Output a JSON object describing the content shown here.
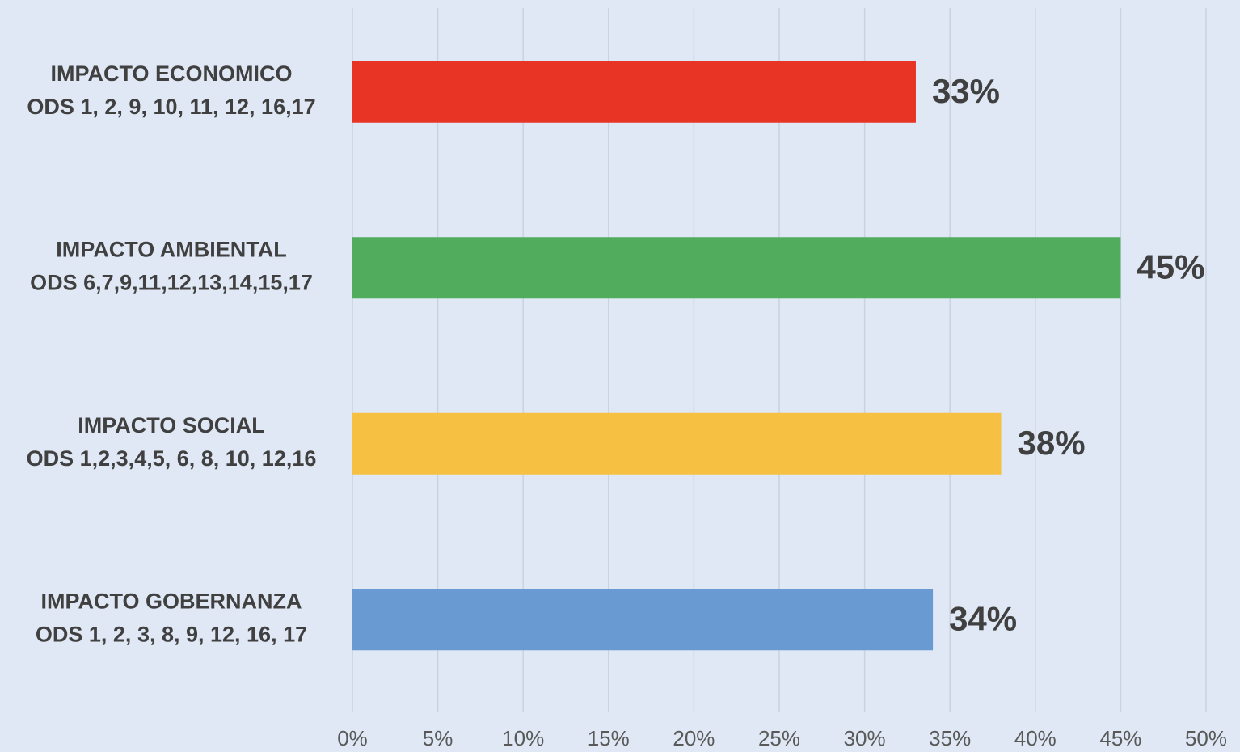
{
  "chart_data": {
    "type": "barh",
    "categories": [
      [
        "IMPACTO ECONOMICO",
        "ODS 1, 2, 9, 10, 11, 12, 16,17"
      ],
      [
        "IMPACTO AMBIENTAL",
        "ODS 6,7,9,11,12,13,14,15,17"
      ],
      [
        "IMPACTO SOCIAL",
        "ODS 1,2,3,4,5, 6, 8, 10, 12,16"
      ],
      [
        "IMPACTO GOBERNANZA",
        "ODS 1, 2, 3, 8, 9, 12, 16, 17"
      ]
    ],
    "values": [
      33,
      45,
      38,
      34
    ],
    "value_labels": [
      "33%",
      "45%",
      "38%",
      "34%"
    ],
    "colors": [
      "#e83425",
      "#51ad5d",
      "#f6c142",
      "#6a9ad2"
    ],
    "xlim": [
      0,
      50
    ],
    "xticks": [
      {
        "value": 0,
        "label": "0%"
      },
      {
        "value": 5,
        "label": "5%"
      },
      {
        "value": 10,
        "label": "10%"
      },
      {
        "value": 15,
        "label": "15%"
      },
      {
        "value": 20,
        "label": "20%"
      },
      {
        "value": 25,
        "label": "25%"
      },
      {
        "value": 30,
        "label": "30%"
      },
      {
        "value": 35,
        "label": "35%"
      },
      {
        "value": 40,
        "label": "40%"
      },
      {
        "value": 45,
        "label": "45%"
      },
      {
        "value": 50,
        "label": "50%"
      }
    ],
    "grid": true
  }
}
